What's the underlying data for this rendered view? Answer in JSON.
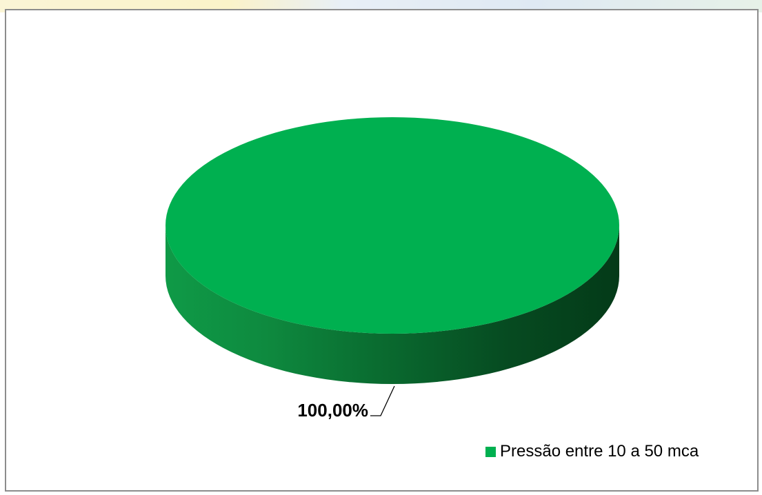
{
  "chart_data": {
    "type": "pie",
    "categories": [
      "Pressão entre 10 a 50 mca"
    ],
    "values": [
      100
    ],
    "data_labels": [
      "100,00%"
    ],
    "colors": [
      "#00b050"
    ],
    "legend_position": "bottom-right",
    "style": "3d"
  }
}
